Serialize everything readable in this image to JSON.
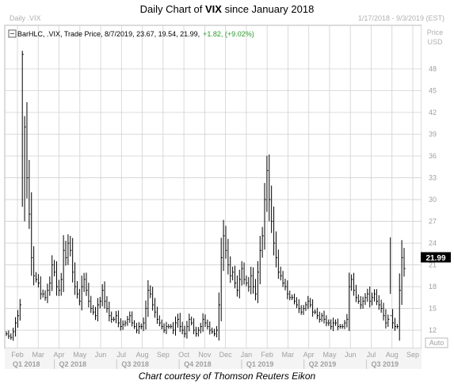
{
  "header": {
    "title_prefix": "Daily Chart of ",
    "title_bold": "VIX",
    "title_suffix": " since January 2018",
    "instrument_label": "Daily .VIX",
    "date_range": "1/17/2018 - 9/3/2019 (EST)"
  },
  "legend": {
    "text": "BarHLC, .VIX, Trade Price, 8/7/2019, 23.67, 19.54, 21.99,",
    "change": "+1.82, (+9.02%)",
    "icon": "chart-settings-icon"
  },
  "axis": {
    "price_label": "Price",
    "currency_label": "USD",
    "auto_label": "Auto"
  },
  "last_price": {
    "label": "21.99",
    "value": 21.99
  },
  "caption": "Chart courtesy of Thomson Reuters Eikon",
  "colors": {
    "bars": "#000000",
    "grid": "#d0d0d0",
    "change": "#2a9a2a",
    "last_price_bg": "#000000"
  },
  "chart_data": {
    "type": "bar",
    "style": "HLC bars",
    "title": "Daily Chart of VIX since January 2018",
    "y_ticks": [
      12,
      15,
      18,
      21,
      24,
      27,
      30,
      33,
      36,
      39,
      42,
      45,
      48
    ],
    "ylim": [
      9.5,
      54
    ],
    "x_month_ticks": [
      "Feb",
      "Mar",
      "Apr",
      "May",
      "Jun",
      "Jul",
      "Aug",
      "Sep",
      "Oct",
      "Nov",
      "Dec",
      "Jan",
      "Feb",
      "Mar",
      "Apr",
      "May",
      "Jun",
      "Jul",
      "Aug",
      "Sep"
    ],
    "x_quarter_ticks": [
      "Q1 2018",
      "Q2 2018",
      "Q3 2018",
      "Q4 2018",
      "Q1 2019",
      "Q2 2019",
      "Q3 2019"
    ],
    "grid": true,
    "series": [
      {
        "values": [
          11.5,
          11.2,
          11.0,
          11.8,
          13.0,
          14.0,
          15.5,
          50.0,
          40.0,
          33.0,
          28.0,
          22.0,
          19.5,
          19.0,
          18.5,
          17.0,
          17.0,
          16.5,
          17.5,
          18.5,
          21.0,
          20.0,
          18.0,
          17.5,
          19.0,
          23.0,
          22.0,
          24.0,
          23.0,
          20.0,
          18.0,
          17.0,
          16.0,
          18.0,
          19.0,
          17.5,
          16.0,
          15.0,
          14.5,
          14.0,
          15.5,
          16.0,
          17.5,
          16.0,
          15.0,
          14.0,
          13.5,
          13.5,
          14.0,
          13.0,
          12.5,
          12.8,
          13.0,
          13.5,
          14.0,
          13.0,
          12.5,
          12.0,
          12.5,
          12.5,
          13.0,
          15.0,
          17.5,
          17.0,
          15.5,
          14.5,
          13.5,
          13.0,
          12.5,
          12.0,
          12.5,
          12.5,
          12.5,
          12.0,
          13.0,
          13.5,
          12.5,
          12.0,
          11.5,
          12.5,
          13.5,
          13.0,
          12.0,
          11.5,
          12.0,
          12.5,
          13.5,
          13.0,
          12.5,
          12.0,
          11.8,
          11.5,
          12.0,
          15.5,
          22.0,
          25.0,
          23.0,
          21.0,
          19.5,
          20.0,
          18.5,
          17.5,
          19.0,
          20.5,
          19.0,
          18.5,
          18.0,
          19.5,
          18.0,
          17.0,
          20.0,
          23.0,
          25.0,
          30.0,
          34.0,
          30.0,
          27.0,
          24.0,
          22.0,
          20.0,
          19.5,
          18.5,
          18.0,
          17.0,
          16.5,
          16.5,
          16.0,
          15.5,
          15.0,
          14.5,
          15.0,
          15.5,
          16.0,
          15.5,
          14.5,
          14.5,
          14.0,
          13.5,
          14.0,
          13.5,
          13.0,
          13.0,
          12.5,
          13.0,
          13.0,
          12.5,
          12.5,
          12.5,
          13.0,
          13.5,
          18.0,
          19.0,
          17.5,
          16.5,
          16.0,
          15.5,
          16.0,
          16.5,
          17.0,
          16.0,
          16.5,
          17.0,
          16.0,
          15.5,
          15.0,
          14.0,
          13.0,
          13.5,
          14.0,
          13.0,
          12.5,
          12.5,
          17.5,
          22.0,
          20.5
        ]
      }
    ]
  }
}
